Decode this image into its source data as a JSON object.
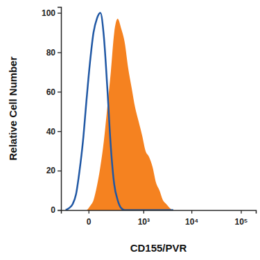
{
  "chart_data": {
    "type": "line",
    "x_label": "CD155/PVR",
    "y_label": "Relative Cell Number",
    "log": "x",
    "x": [
      -161,
      -125,
      -93,
      -67,
      -44,
      -25,
      -9,
      6,
      22,
      40,
      62,
      88,
      118,
      154,
      195,
      244,
      302,
      370,
      450,
      543,
      653,
      782,
      934,
      1112,
      1322,
      1568,
      1857,
      2197,
      2598,
      3067,
      3619,
      4267
    ],
    "xlim": [
      -220,
      200000
    ],
    "xticks": [
      0,
      {
        "value": 1000,
        "label": "10³"
      },
      {
        "value": 10000,
        "label": "10⁴"
      },
      {
        "value": 100000,
        "label": "10⁵"
      }
    ],
    "ylim": [
      0,
      103
    ],
    "yticks": [
      0,
      20,
      40,
      60,
      80,
      100
    ],
    "series": [
      {
        "type": "line",
        "color": "#1f57a4",
        "values": [
          0,
          1,
          3,
          8,
          20,
          35,
          55,
          75,
          90,
          97,
          100,
          88,
          62,
          32,
          13,
          5,
          1,
          0,
          0,
          0,
          0,
          0,
          0,
          0,
          0,
          0,
          0,
          0,
          0,
          0,
          0,
          0
        ]
      },
      {
        "type": "area",
        "color": "#f58220",
        "values": [
          0,
          0,
          0,
          0,
          0,
          0,
          0,
          2,
          5,
          12,
          22,
          35,
          52,
          70,
          90,
          97,
          92,
          85,
          72,
          62,
          52,
          45,
          38,
          30,
          27,
          22,
          14,
          10,
          5,
          3,
          1,
          0
        ]
      }
    ]
  }
}
